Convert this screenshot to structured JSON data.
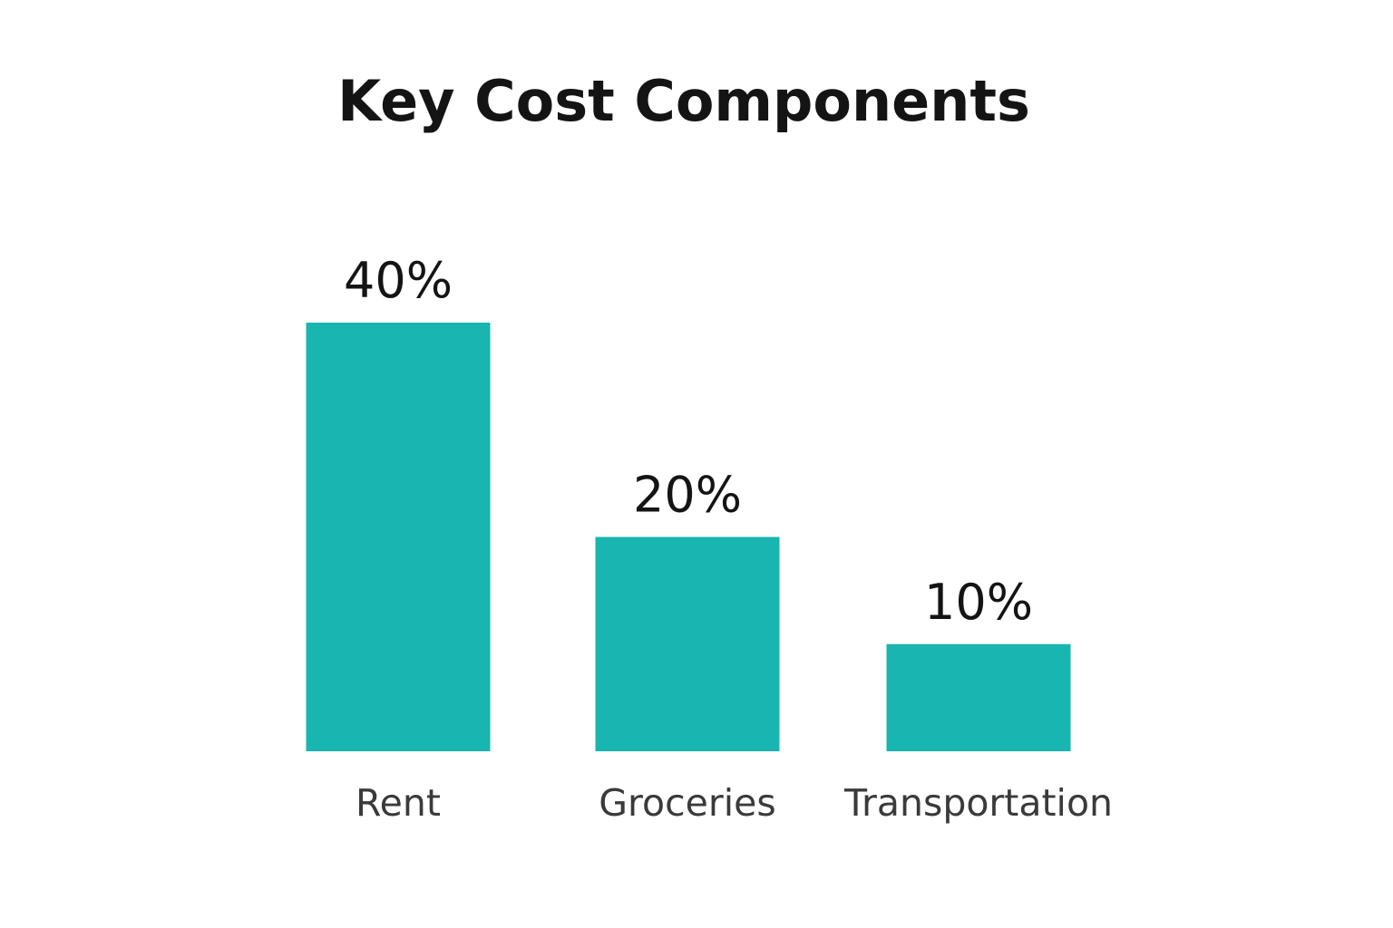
{
  "chart_data": {
    "type": "bar",
    "title": "Key Cost Components",
    "categories": [
      "Rent",
      "Groceries",
      "Transportation"
    ],
    "values": [
      40,
      20,
      10
    ],
    "value_labels": [
      "40%",
      "20%",
      "10%"
    ],
    "unit": "%",
    "ylim": [
      0,
      40
    ],
    "grid": false,
    "legend": "none",
    "bar_color": "#19b5b0"
  }
}
